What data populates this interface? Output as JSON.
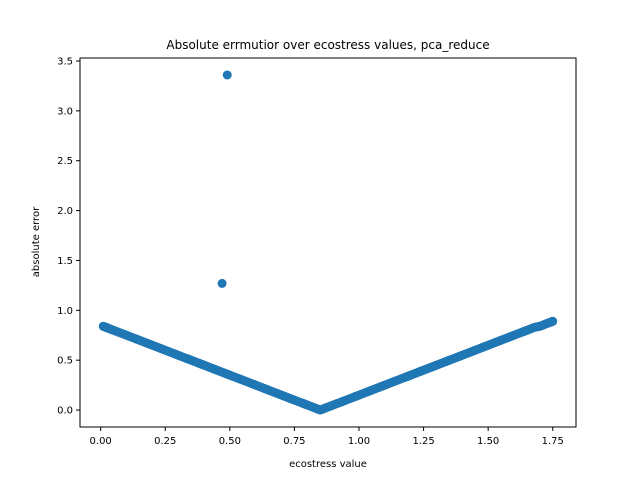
{
  "chart_data": {
    "type": "scatter",
    "title": "Absolute errmutior over ecostress values, pca_reduce",
    "xlabel": "ecostress value",
    "ylabel": "absolute error",
    "xlim": [
      -0.08,
      1.84
    ],
    "ylim": [
      -0.17,
      3.53
    ],
    "xticks": [
      0.0,
      0.25,
      0.5,
      0.75,
      1.0,
      1.25,
      1.5,
      1.75
    ],
    "xtick_labels": [
      "0.00",
      "0.25",
      "0.50",
      "0.75",
      "1.00",
      "1.25",
      "1.50",
      "1.75"
    ],
    "yticks": [
      0.0,
      0.5,
      1.0,
      1.5,
      2.0,
      2.5,
      3.0,
      3.5
    ],
    "ytick_labels": [
      "0.0",
      "0.5",
      "1.0",
      "1.5",
      "2.0",
      "2.5",
      "3.0",
      "3.5"
    ],
    "grid": false,
    "marker_color": "#1f77b4",
    "series": [
      {
        "points": [
          [
            0.01,
            0.84
          ],
          [
            0.02,
            0.83
          ],
          [
            0.03,
            0.82
          ],
          [
            0.05,
            0.8
          ],
          [
            0.08,
            0.77
          ],
          [
            0.1,
            0.75
          ],
          [
            0.13,
            0.72
          ],
          [
            0.15,
            0.7
          ],
          [
            0.18,
            0.67
          ],
          [
            0.2,
            0.65
          ],
          [
            0.23,
            0.62
          ],
          [
            0.25,
            0.6
          ],
          [
            0.28,
            0.57
          ],
          [
            0.3,
            0.55
          ],
          [
            0.33,
            0.52
          ],
          [
            0.35,
            0.5
          ],
          [
            0.38,
            0.47
          ],
          [
            0.4,
            0.45
          ],
          [
            0.43,
            0.42
          ],
          [
            0.45,
            0.4
          ],
          [
            0.48,
            0.37
          ],
          [
            0.5,
            0.35
          ],
          [
            0.53,
            0.32
          ],
          [
            0.55,
            0.3
          ],
          [
            0.58,
            0.27
          ],
          [
            0.6,
            0.25
          ],
          [
            0.63,
            0.22
          ],
          [
            0.65,
            0.2
          ],
          [
            0.68,
            0.17
          ],
          [
            0.7,
            0.15
          ],
          [
            0.73,
            0.12
          ],
          [
            0.75,
            0.1
          ],
          [
            0.78,
            0.07
          ],
          [
            0.8,
            0.05
          ],
          [
            0.83,
            0.02
          ],
          [
            0.85,
            0.0
          ],
          [
            0.87,
            0.02
          ],
          [
            0.9,
            0.05
          ],
          [
            0.93,
            0.08
          ],
          [
            0.95,
            0.1
          ],
          [
            0.98,
            0.13
          ],
          [
            1.0,
            0.15
          ],
          [
            1.03,
            0.18
          ],
          [
            1.05,
            0.2
          ],
          [
            1.08,
            0.23
          ],
          [
            1.1,
            0.25
          ],
          [
            1.13,
            0.28
          ],
          [
            1.15,
            0.3
          ],
          [
            1.18,
            0.33
          ],
          [
            1.2,
            0.35
          ],
          [
            1.23,
            0.38
          ],
          [
            1.25,
            0.4
          ],
          [
            1.28,
            0.43
          ],
          [
            1.3,
            0.45
          ],
          [
            1.33,
            0.48
          ],
          [
            1.35,
            0.5
          ],
          [
            1.38,
            0.53
          ],
          [
            1.4,
            0.55
          ],
          [
            1.43,
            0.58
          ],
          [
            1.45,
            0.6
          ],
          [
            1.48,
            0.63
          ],
          [
            1.5,
            0.65
          ],
          [
            1.53,
            0.68
          ],
          [
            1.55,
            0.7
          ],
          [
            1.58,
            0.73
          ],
          [
            1.6,
            0.75
          ],
          [
            1.63,
            0.78
          ],
          [
            1.65,
            0.8
          ],
          [
            1.68,
            0.83
          ],
          [
            1.7,
            0.84
          ],
          [
            1.72,
            0.86
          ],
          [
            1.74,
            0.88
          ],
          [
            1.75,
            0.89
          ],
          [
            0.47,
            1.27
          ],
          [
            0.49,
            3.36
          ]
        ]
      }
    ]
  }
}
